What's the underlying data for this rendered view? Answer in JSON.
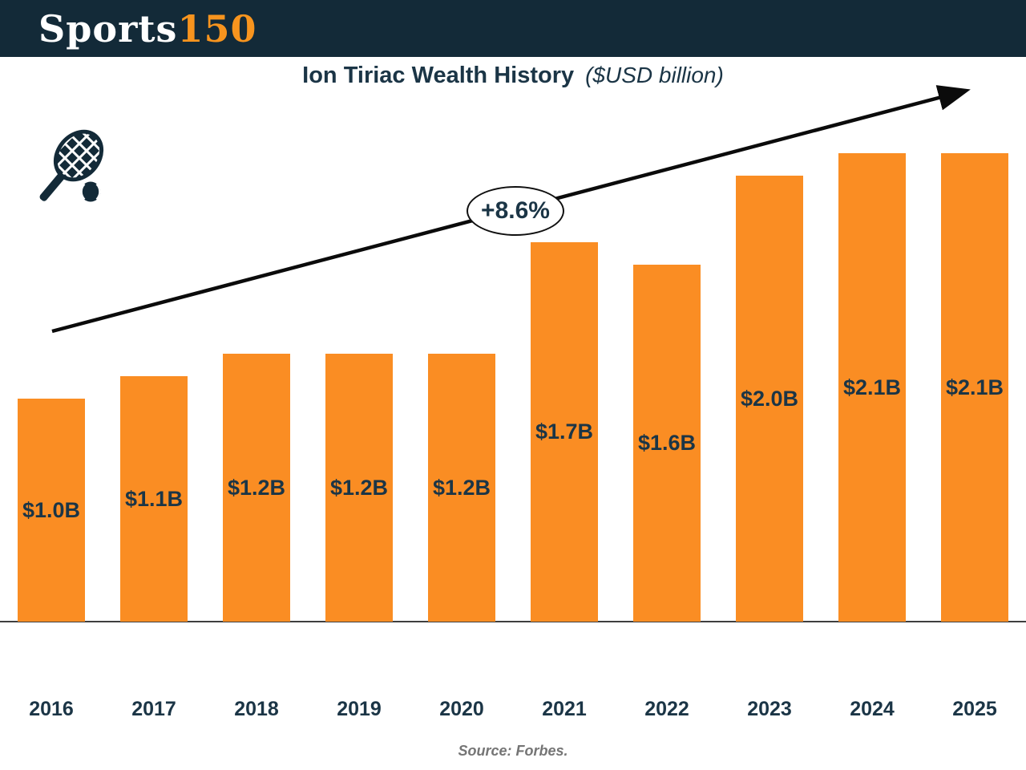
{
  "header": {
    "logo": {
      "text_primary": "Sports",
      "text_accent": "150"
    }
  },
  "title": {
    "main": "Ion Tiriac Wealth History",
    "subtitle": "($USD billion)"
  },
  "annotation": {
    "growth": "+8.6%"
  },
  "footer": {
    "source": "Source: Forbes."
  },
  "icons": {
    "tennis": "tennis-racket-and-ball-icon",
    "trend": "upward-arrow"
  },
  "colors": {
    "header_bg": "#132A38",
    "bar_orange": "#FA8D23",
    "logo_accent": "#F7941E",
    "text_navy": "#1B3546",
    "arrow_black": "#0B0B0B",
    "axis_gray": "#3f3f3f",
    "source_gray": "#757575",
    "badge_border": "#101010"
  },
  "chart_data": {
    "type": "bar",
    "title": "Ion Tiriac Wealth History",
    "subtitle": "($USD billion)",
    "unit": "$USD billion",
    "categories": [
      "2016",
      "2017",
      "2018",
      "2019",
      "2020",
      "2021",
      "2022",
      "2023",
      "2024",
      "2025"
    ],
    "values": [
      1.0,
      1.1,
      1.2,
      1.2,
      1.2,
      1.7,
      1.6,
      2.0,
      2.1,
      2.1
    ],
    "bar_labels": [
      "$1.0B",
      "$1.1B",
      "$1.2B",
      "$1.2B",
      "$1.2B",
      "$1.7B",
      "$1.6B",
      "$2.0B",
      "$2.1B",
      "$2.1B"
    ],
    "annotation": "+8.6%",
    "annotation_meaning": "average yearly growth along trend arrow",
    "source": "Source: Forbes.",
    "ylim": [
      0,
      2.4
    ],
    "grid": false,
    "legend": false,
    "bar_color": "#FA8D23",
    "label_position": "center-inside",
    "trend": "increasing"
  }
}
